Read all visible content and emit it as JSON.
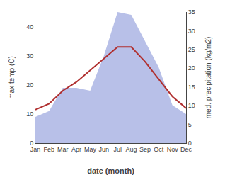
{
  "chart_data": {
    "type": "line",
    "categories": [
      "Jan",
      "Feb",
      "Mar",
      "Apr",
      "May",
      "Jun",
      "Jul",
      "Aug",
      "Sep",
      "Oct",
      "Nov",
      "Dec"
    ],
    "series": [
      {
        "type": "area",
        "color": "#b8c0e8",
        "values": [
          9,
          11,
          19,
          19,
          18,
          30,
          45,
          44,
          35,
          26,
          13,
          10
        ]
      },
      {
        "type": "line",
        "color": "#b03030",
        "values": [
          11.5,
          13.5,
          18,
          21,
          25,
          29,
          33,
          33,
          28,
          22,
          16,
          12
        ]
      }
    ],
    "xlabel": "date (month)",
    "ylabel": "max temp (C)",
    "y2label": "med. precipitation (kg/m2)",
    "ylim": [
      0,
      45
    ],
    "yticks": [
      0,
      10,
      20,
      30,
      40
    ],
    "y2lim": [
      0,
      35
    ],
    "y2ticks": [
      0,
      5,
      10,
      15,
      20,
      25,
      30,
      35
    ],
    "grid": false
  }
}
